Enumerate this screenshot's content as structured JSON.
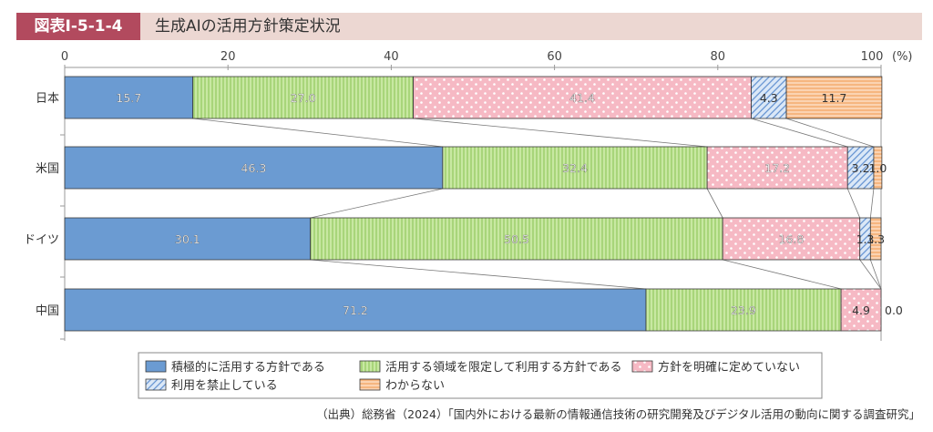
{
  "figure": {
    "number": "図表Ⅰ-5-1-4",
    "title": "生成AIの活用方針策定状況"
  },
  "source": "（出典）総務省（2024）「国内外における最新の情報通信技術の研究開発及びデジタル活用の動向に関する調査研究」",
  "chart_data": {
    "type": "bar",
    "orientation": "horizontal",
    "stacked": true,
    "categories": [
      "日本",
      "米国",
      "ドイツ",
      "中国"
    ],
    "series": [
      {
        "name": "積極的に活用する方針である",
        "values": [
          15.7,
          46.3,
          30.1,
          71.2
        ],
        "color": "#6b9bd2",
        "pattern": "solid"
      },
      {
        "name": "活用する領域を限定して利用する方針である",
        "values": [
          27.0,
          32.4,
          50.5,
          23.9
        ],
        "color": "#b9e08a",
        "pattern": "vertical-lines"
      },
      {
        "name": "方針を明確に定めていない",
        "values": [
          41.4,
          17.2,
          16.8,
          4.9
        ],
        "color": "#f6b9c4",
        "pattern": "dots"
      },
      {
        "name": "利用を禁止している",
        "values": [
          4.3,
          3.2,
          1.3,
          0.0
        ],
        "color": "#a9c5ea",
        "pattern": "diagonal-lines"
      },
      {
        "name": "わからない",
        "values": [
          11.7,
          1.0,
          1.3,
          0.0
        ],
        "color": "#f8bf8f",
        "pattern": "horizontal-lines"
      }
    ],
    "value_labels": [
      [
        "15.7",
        "27.0",
        "41.4",
        "4.3",
        "11.7"
      ],
      [
        "46.3",
        "32.4",
        "17.2",
        "3.2",
        "1.0"
      ],
      [
        "30.1",
        "50.5",
        "16.8",
        "1.3",
        "1.3"
      ],
      [
        "71.2",
        "23.9",
        "4.9",
        "",
        "0.0"
      ]
    ],
    "x_ticks": [
      "0",
      "20",
      "40",
      "60",
      "80",
      "100"
    ],
    "x_unit": "(%)",
    "xlim": [
      0,
      100
    ],
    "grid": false,
    "connector_lines": true,
    "legend_position": "bottom"
  }
}
